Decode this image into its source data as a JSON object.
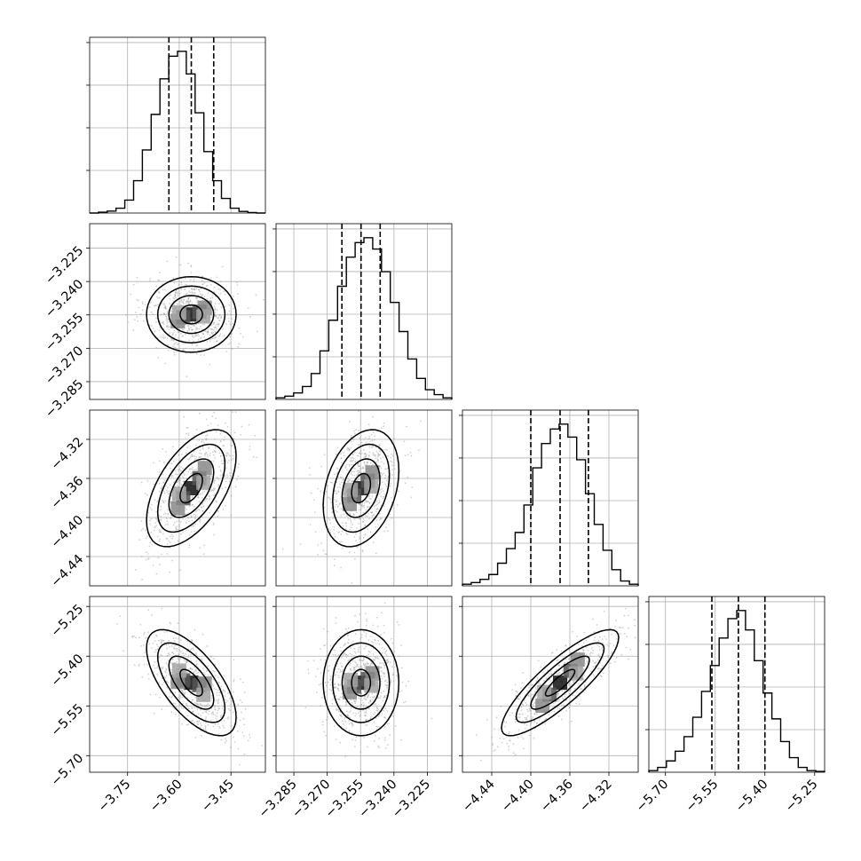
{
  "chart_data": {
    "type": "corner",
    "params": [
      {
        "index": 0,
        "mean": -3.565,
        "sd": 0.065,
        "range": [
          -3.86,
          -3.35
        ],
        "ticks": [
          -3.75,
          -3.6,
          -3.45
        ],
        "tick_labels": [
          "−3.75",
          "−3.60",
          "−3.45"
        ],
        "quantiles": [
          -3.63,
          -3.565,
          -3.5
        ],
        "hist": [
          0.0,
          0.005,
          0.012,
          0.03,
          0.08,
          0.2,
          0.39,
          0.61,
          0.83,
          0.97,
          1.0,
          0.86,
          0.62,
          0.38,
          0.2,
          0.09,
          0.03,
          0.01,
          0.003,
          0.0
        ]
      },
      {
        "index": 1,
        "mean": -3.2548,
        "sd": 0.0085,
        "range": [
          -3.293,
          -3.214
        ],
        "ticks": [
          -3.285,
          -3.27,
          -3.255,
          -3.24,
          -3.225
        ],
        "tick_labels": [
          "−3.285",
          "−3.270",
          "−3.255",
          "−3.240",
          "−3.225"
        ],
        "quantiles": [
          -3.2634,
          -3.2548,
          -3.2462
        ],
        "hist": [
          0.01,
          0.02,
          0.04,
          0.08,
          0.16,
          0.3,
          0.49,
          0.7,
          0.88,
          0.97,
          1.0,
          0.93,
          0.79,
          0.6,
          0.42,
          0.25,
          0.13,
          0.06,
          0.03,
          0.01
        ]
      },
      {
        "index": 2,
        "mean": -4.37,
        "sd": 0.03,
        "range": [
          -4.47,
          -4.29
        ],
        "ticks": [
          -4.44,
          -4.4,
          -4.36,
          -4.32
        ],
        "tick_labels": [
          "−4.44",
          "−4.40",
          "−4.36",
          "−4.32"
        ],
        "quantiles": [
          -4.4,
          -4.37,
          -4.341
        ],
        "hist": [
          0.01,
          0.02,
          0.04,
          0.07,
          0.14,
          0.23,
          0.33,
          0.5,
          0.73,
          0.88,
          0.97,
          1.0,
          0.92,
          0.78,
          0.57,
          0.38,
          0.22,
          0.1,
          0.03,
          0.01
        ]
      },
      {
        "index": 3,
        "mean": -5.48,
        "sd": 0.08,
        "range": [
          -5.75,
          -5.22
        ],
        "ticks": [
          -5.7,
          -5.55,
          -5.4,
          -5.25
        ],
        "tick_labels": [
          "−5.70",
          "−5.55",
          "−5.40",
          "−5.25"
        ],
        "quantiles": [
          -5.56,
          -5.48,
          -5.4
        ],
        "hist": [
          0.01,
          0.03,
          0.07,
          0.13,
          0.22,
          0.34,
          0.5,
          0.66,
          0.83,
          0.95,
          1.0,
          0.88,
          0.69,
          0.49,
          0.33,
          0.19,
          0.09,
          0.03,
          0.01,
          0.005
        ]
      }
    ],
    "correlations": [
      [
        0,
        1,
        0.0
      ],
      [
        0,
        2,
        0.55
      ],
      [
        0,
        3,
        -0.65
      ],
      [
        1,
        2,
        0.3
      ],
      [
        1,
        3,
        0.0
      ],
      [
        2,
        3,
        0.85
      ]
    ],
    "contour_levels": [
      0.5,
      1.0,
      1.5,
      2.0
    ],
    "grid": true,
    "xlabel": "",
    "ylabel": "",
    "title": ""
  }
}
